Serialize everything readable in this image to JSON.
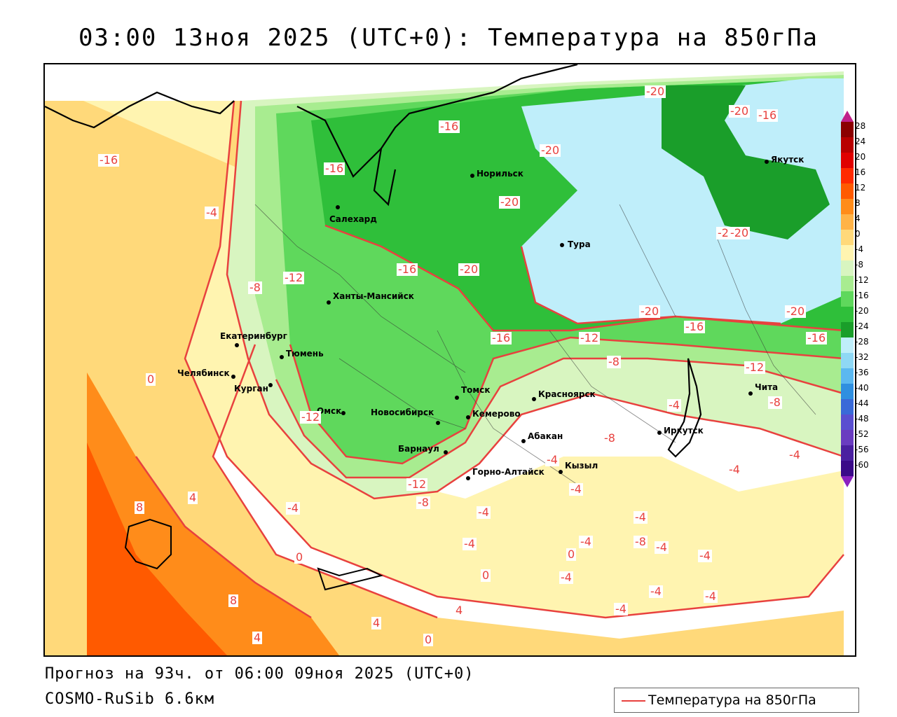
{
  "title": "03:00 13ноя 2025 (UTC+0): Температура на 850гПа",
  "forecast_line": "Прогноз на 93ч. от 06:00 09ноя 2025 (UTC+0)",
  "model_line": "COSMO-RuSib 6.6км",
  "legend": {
    "label": "Температура на 850гПа",
    "line_color": "#e8413e"
  },
  "colorbar": {
    "ticks": [
      "28",
      "24",
      "20",
      "16",
      "12",
      "8",
      "4",
      "0",
      "-4",
      "-8",
      "-12",
      "-16",
      "-20",
      "-24",
      "-28",
      "-32",
      "-36",
      "-40",
      "-44",
      "-48",
      "-52",
      "-56",
      "-60"
    ],
    "colors": [
      "#8b0000",
      "#b80000",
      "#e00000",
      "#ff2a00",
      "#ff5a00",
      "#ff8c1a",
      "#ffb347",
      "#ffd97a",
      "#fff4b0",
      "#d8f5c0",
      "#a8ec90",
      "#5fd85c",
      "#2fbf3a",
      "#1a9e2a",
      "#bfeefa",
      "#8fd8f5",
      "#5bb8f0",
      "#2f8fe0",
      "#3a6ad8",
      "#5a4fd0",
      "#6a3cc0",
      "#4a20a0",
      "#3a0a88"
    ]
  },
  "cities": [
    {
      "name": "Салехард"
    },
    {
      "name": "Норильск"
    },
    {
      "name": "Тура"
    },
    {
      "name": "Якутск"
    },
    {
      "name": "Ханты-Мансийск"
    },
    {
      "name": "Екатеринбург"
    },
    {
      "name": "Тюмень"
    },
    {
      "name": "Челябинск"
    },
    {
      "name": "Курган"
    },
    {
      "name": "Омск"
    },
    {
      "name": "Новосибирск"
    },
    {
      "name": "Томск"
    },
    {
      "name": "Кемерово"
    },
    {
      "name": "Барнаул"
    },
    {
      "name": "Красноярск"
    },
    {
      "name": "Абакан"
    },
    {
      "name": "Горно-Алтайск"
    },
    {
      "name": "Кызыл"
    },
    {
      "name": "Иркутск"
    },
    {
      "name": "Чита"
    }
  ],
  "isotherm_labels": [
    "-20",
    "-16",
    "-20",
    "-16",
    "-20",
    "-20",
    "-20",
    "-16",
    "-20",
    "-20",
    "-16",
    "-20",
    "-20",
    "-16",
    "-16",
    "-12",
    "-8",
    "-12",
    "-8",
    "-16",
    "-12",
    "-8",
    "-4",
    "0",
    "-4",
    "4",
    "8",
    "-4",
    "0",
    "8",
    "4",
    "4",
    "-12",
    "-8",
    "-4",
    "-4",
    "-4",
    "-4",
    "-4",
    "-8",
    "-4",
    "-4",
    "0",
    "-4",
    "4",
    "0",
    "-4",
    "-4",
    "-4",
    "-4",
    "0",
    "-12",
    "-8",
    "-16",
    "-4",
    "-4"
  ]
}
